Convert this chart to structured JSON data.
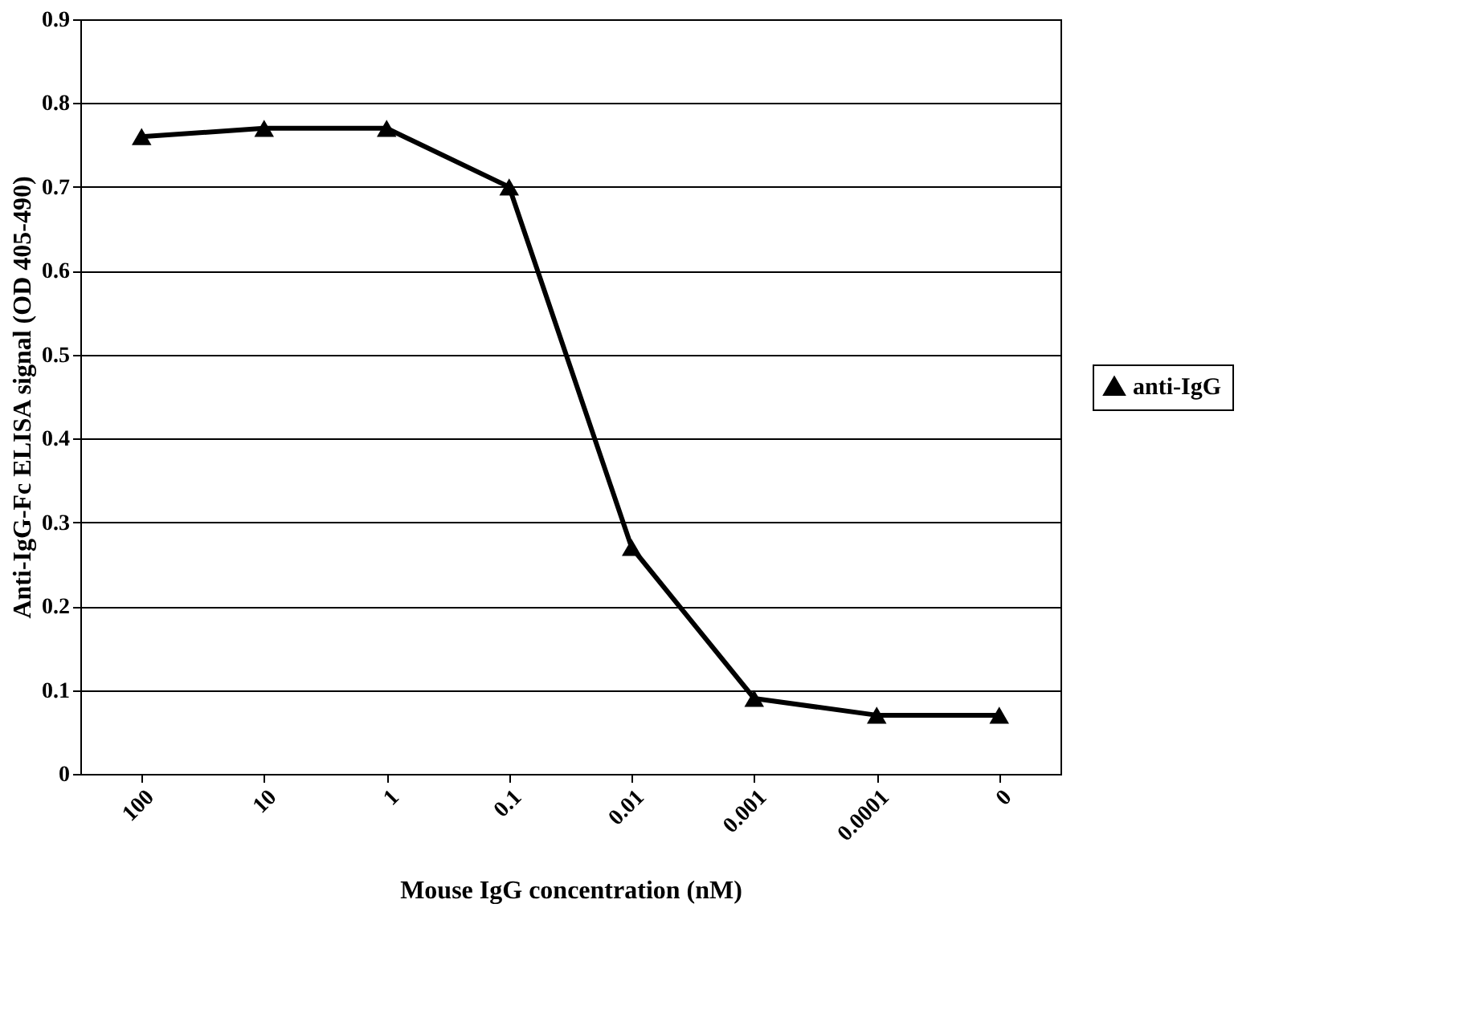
{
  "chart_data": {
    "type": "line",
    "xlabel": "Mouse IgG concentration (nM)",
    "ylabel": "Anti-IgG-Fc ELISA signal (OD 405-490)",
    "categories": [
      "100",
      "10",
      "1",
      "0.1",
      "0.01",
      "0.001",
      "0.0001",
      "0"
    ],
    "series": [
      {
        "name": "anti-IgG",
        "color": "#000000",
        "values": [
          0.76,
          0.77,
          0.77,
          0.7,
          0.27,
          0.09,
          0.07,
          0.07
        ]
      }
    ],
    "ylim": [
      0,
      0.9
    ],
    "yticks": [
      0,
      0.1,
      0.2,
      0.3,
      0.4,
      0.5,
      0.6,
      0.7,
      0.8,
      0.9
    ],
    "grid": "y",
    "legend": "right",
    "marker": "triangle",
    "line_style": "solid"
  }
}
